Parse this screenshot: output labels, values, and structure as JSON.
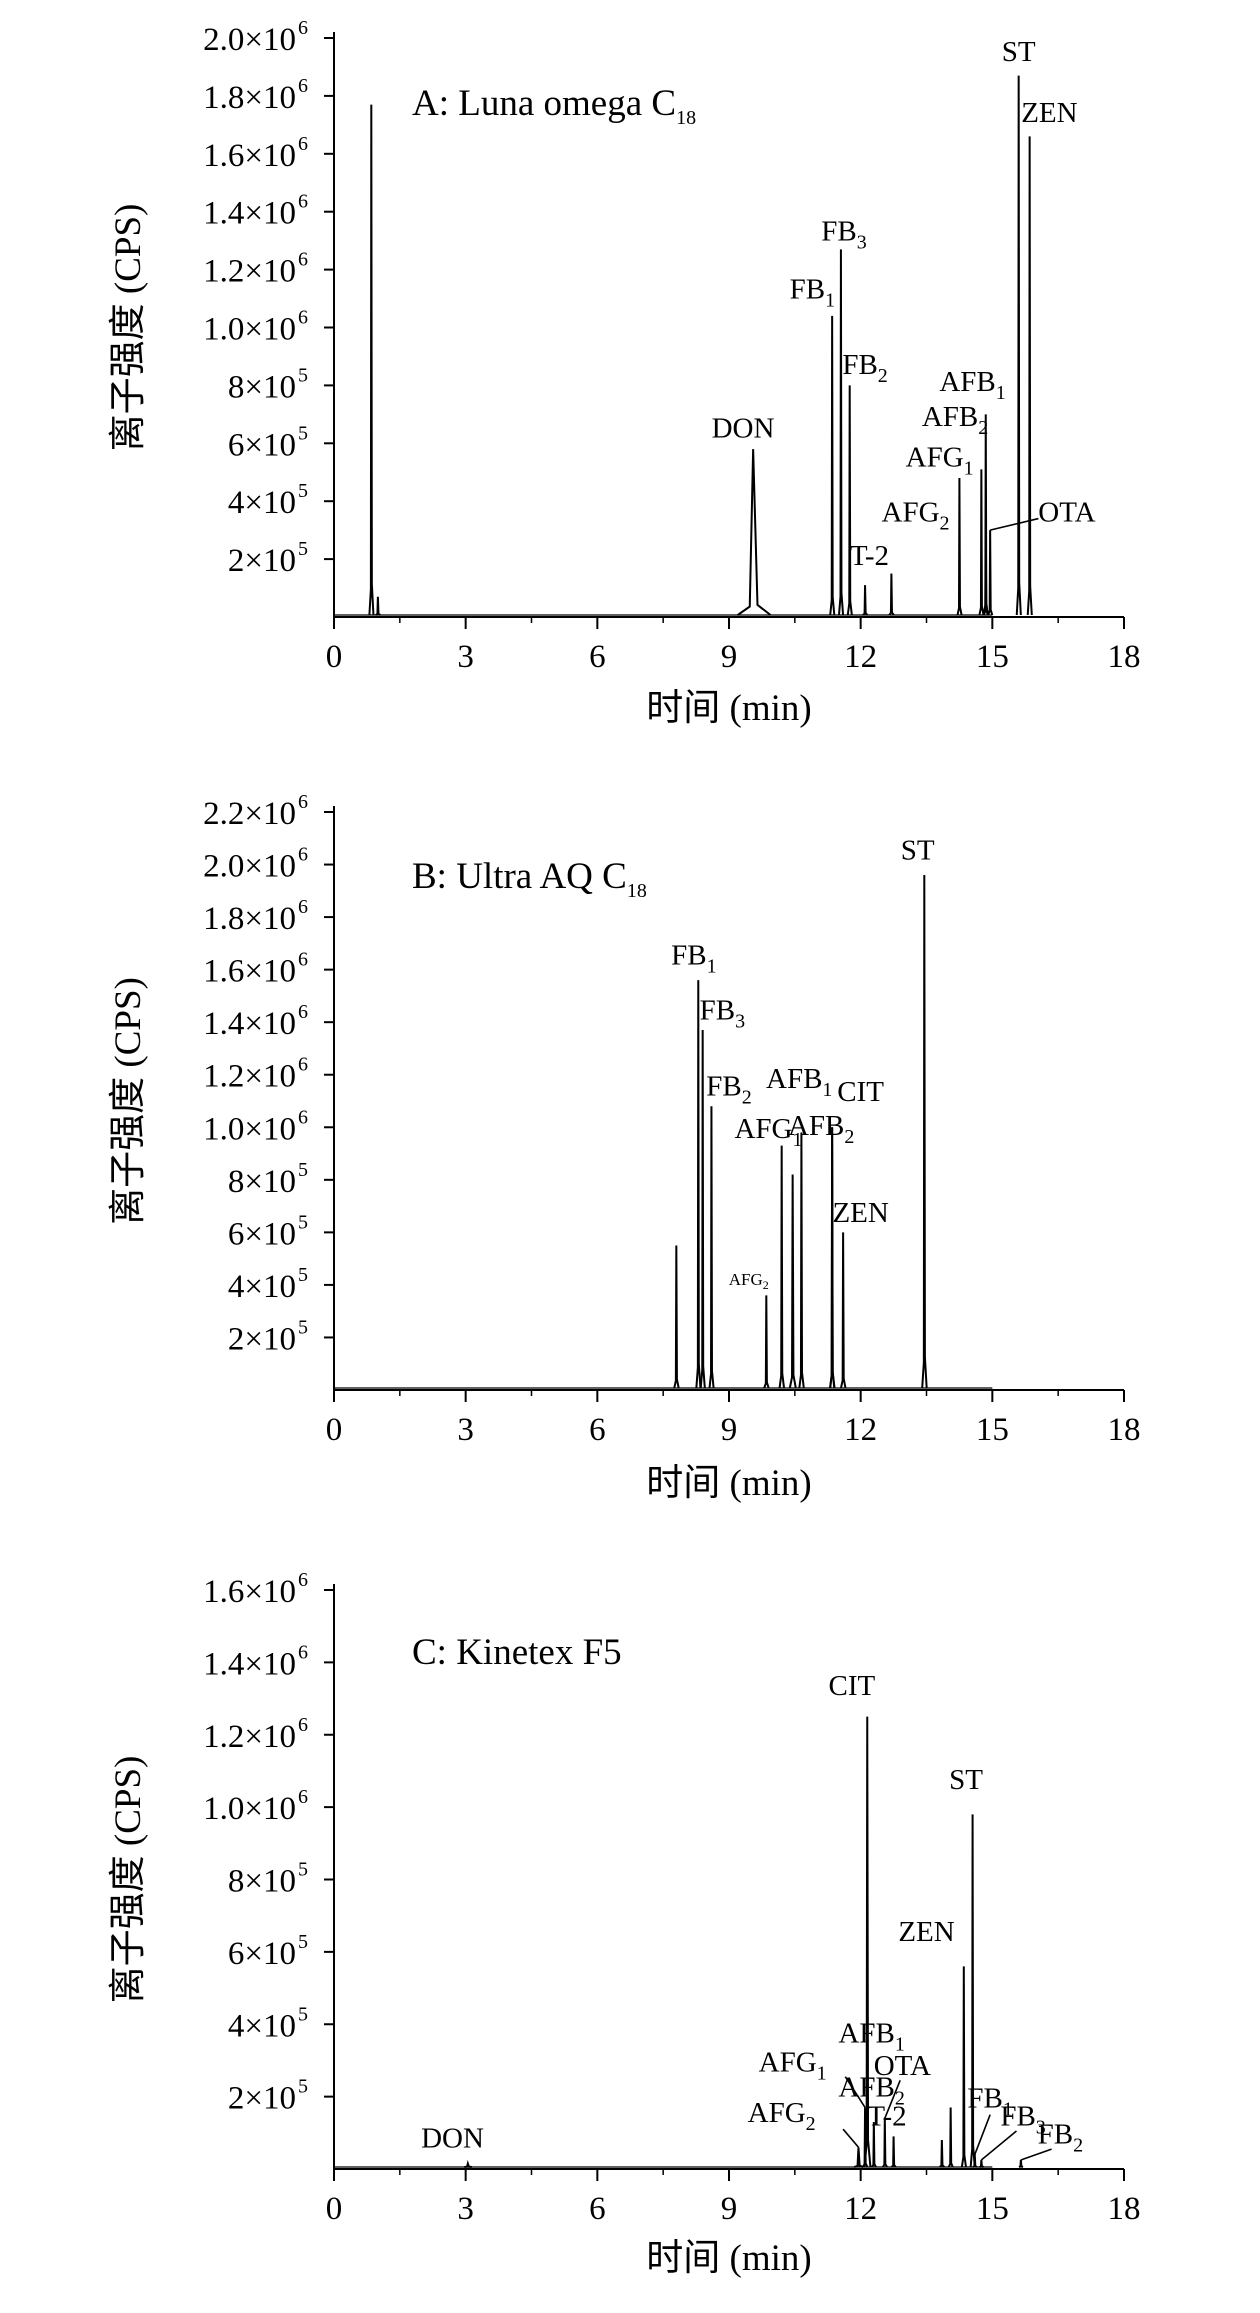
{
  "chart_data": [
    {
      "type": "line",
      "title": "A: Luna omega C",
      "title_sub": "18",
      "xlabel": "时间 (min)",
      "ylabel": "离子强度 (CPS)",
      "xlim": [
        0,
        18
      ],
      "ylim": [
        0,
        2000000
      ],
      "xticks": [
        0,
        3,
        6,
        9,
        12,
        15,
        18
      ],
      "yticks": [
        {
          "value": 200000,
          "mant": "2×10",
          "exp": "5"
        },
        {
          "value": 400000,
          "mant": "4×10",
          "exp": "5"
        },
        {
          "value": 600000,
          "mant": "6×10",
          "exp": "5"
        },
        {
          "value": 800000,
          "mant": "8×10",
          "exp": "5"
        },
        {
          "value": 1000000,
          "mant": "1.0×10",
          "exp": "6"
        },
        {
          "value": 1200000,
          "mant": "1.2×10",
          "exp": "6"
        },
        {
          "value": 1400000,
          "mant": "1.4×10",
          "exp": "6"
        },
        {
          "value": 1600000,
          "mant": "1.6×10",
          "exp": "6"
        },
        {
          "value": 1800000,
          "mant": "1.8×10",
          "exp": "6"
        },
        {
          "value": 2000000,
          "mant": "2.0×10",
          "exp": "6"
        }
      ],
      "peaks": [
        {
          "label": "",
          "x": 0.85,
          "y": 1770000,
          "w": 0.025
        },
        {
          "label": "",
          "x": 1.0,
          "y": 70000,
          "w": 0.03
        },
        {
          "label": "DON",
          "sub": "",
          "x": 9.55,
          "y": 580000,
          "w": 0.22,
          "lx": 9.32,
          "ly": 620000
        },
        {
          "label": "FB",
          "sub": "1",
          "x": 11.35,
          "y": 1040000,
          "w": 0.025,
          "lx": 10.9,
          "ly": 1100000
        },
        {
          "label": "FB",
          "sub": "3",
          "x": 11.55,
          "y": 1270000,
          "w": 0.025,
          "lx": 11.62,
          "ly": 1300000
        },
        {
          "label": "FB",
          "sub": "2",
          "x": 11.75,
          "y": 800000,
          "w": 0.025,
          "lx": 12.1,
          "ly": 840000
        },
        {
          "label": "T-2",
          "sub": "",
          "x": 12.1,
          "y": 110000,
          "w": 0.03,
          "lx": 12.2,
          "ly": 180000
        },
        {
          "label": "",
          "x": 12.7,
          "y": 150000,
          "w": 0.03
        },
        {
          "label": "AFG",
          "sub": "2",
          "x": 14.25,
          "y": 480000,
          "w": 0.025,
          "lx": 13.25,
          "ly": 330000
        },
        {
          "label": "AFG",
          "sub": "1",
          "x": 14.75,
          "y": 510000,
          "w": 0.025,
          "lx": 13.8,
          "ly": 520000
        },
        {
          "label": "AFB",
          "sub": "2",
          "x": 14.85,
          "y": 700000,
          "w": 0.025,
          "lx": 14.15,
          "ly": 660000
        },
        {
          "label": "AFB",
          "sub": "1",
          "x": 14.85,
          "y": 270000,
          "w": 0.025,
          "lx": 14.55,
          "ly": 780000
        },
        {
          "label": "ST",
          "sub": "",
          "x": 15.6,
          "y": 1870000,
          "w": 0.025,
          "lx": 15.6,
          "ly": 1920000
        },
        {
          "label": "ZEN",
          "sub": "",
          "x": 15.85,
          "y": 1660000,
          "w": 0.025,
          "lx": 16.3,
          "ly": 1710000
        },
        {
          "label": "OTA",
          "sub": "",
          "x": 14.95,
          "y": 300000,
          "w": 0.025,
          "lx": 16.7,
          "ly": 330000
        }
      ]
    },
    {
      "type": "line",
      "title": "B: Ultra AQ C",
      "title_sub": "18",
      "xlabel": "时间 (min)",
      "ylabel": "离子强度 (CPS)",
      "xlim": [
        0,
        18
      ],
      "ylim": [
        0,
        2200000
      ],
      "xticks": [
        0,
        3,
        6,
        9,
        12,
        15,
        18
      ],
      "yticks": [
        {
          "value": 200000,
          "mant": "2×10",
          "exp": "5"
        },
        {
          "value": 400000,
          "mant": "4×10",
          "exp": "5"
        },
        {
          "value": 600000,
          "mant": "6×10",
          "exp": "5"
        },
        {
          "value": 800000,
          "mant": "8×10",
          "exp": "5"
        },
        {
          "value": 1000000,
          "mant": "1.0×10",
          "exp": "6"
        },
        {
          "value": 1200000,
          "mant": "1.2×10",
          "exp": "6"
        },
        {
          "value": 1400000,
          "mant": "1.4×10",
          "exp": "6"
        },
        {
          "value": 1600000,
          "mant": "1.6×10",
          "exp": "6"
        },
        {
          "value": 1800000,
          "mant": "1.8×10",
          "exp": "6"
        },
        {
          "value": 2000000,
          "mant": "2.0×10",
          "exp": "6"
        },
        {
          "value": 2200000,
          "mant": "2.2×10",
          "exp": "6"
        }
      ],
      "peaks": [
        {
          "label": "",
          "x": 7.8,
          "y": 550000,
          "w": 0.03
        },
        {
          "label": "FB",
          "sub": "1",
          "x": 8.3,
          "y": 1560000,
          "w": 0.025,
          "lx": 8.2,
          "ly": 1620000
        },
        {
          "label": "FB",
          "sub": "3",
          "x": 8.4,
          "y": 1370000,
          "w": 0.025,
          "lx": 8.85,
          "ly": 1410000
        },
        {
          "label": "FB",
          "sub": "2",
          "x": 8.6,
          "y": 1080000,
          "w": 0.025,
          "lx": 9.0,
          "ly": 1120000
        },
        {
          "label": "AFG",
          "sub": "2",
          "x": 9.85,
          "y": 360000,
          "w": 0.03,
          "lx": 9.45,
          "ly": 400000,
          "small": true
        },
        {
          "label": "AFG",
          "sub": "1",
          "x": 10.2,
          "y": 930000,
          "w": 0.03,
          "lx": 9.9,
          "ly": 960000
        },
        {
          "label": "",
          "x": 10.45,
          "y": 820000,
          "w": 0.04
        },
        {
          "label": "AFB",
          "sub": "1",
          "x": 10.65,
          "y": 980000,
          "w": 0.03,
          "lx": 10.6,
          "ly": 1150000
        },
        {
          "label": "AFB",
          "sub": "2",
          "x": 11.35,
          "y": 1000000,
          "w": 0.03,
          "lx": 11.1,
          "ly": 970000
        },
        {
          "label": "CIT",
          "sub": "",
          "x": 11.35,
          "y": 1000000,
          "w": 0.001,
          "lx": 12.0,
          "ly": 1100000
        },
        {
          "label": "ZEN",
          "sub": "",
          "x": 11.6,
          "y": 600000,
          "w": 0.03,
          "lx": 12.0,
          "ly": 640000
        },
        {
          "label": "ST",
          "sub": "",
          "x": 13.45,
          "y": 1960000,
          "w": 0.03,
          "lx": 13.3,
          "ly": 2020000
        }
      ]
    },
    {
      "type": "line",
      "title": "C: Kinetex F5",
      "title_sub": "",
      "xlabel": "时间 (min)",
      "ylabel": "离子强度 (CPS)",
      "xlim": [
        0,
        18
      ],
      "ylim": [
        0,
        1600000
      ],
      "xticks": [
        0,
        3,
        6,
        9,
        12,
        15,
        18
      ],
      "yticks": [
        {
          "value": 200000,
          "mant": "2×10",
          "exp": "5"
        },
        {
          "value": 400000,
          "mant": "4×10",
          "exp": "5"
        },
        {
          "value": 600000,
          "mant": "6×10",
          "exp": "5"
        },
        {
          "value": 800000,
          "mant": "8×10",
          "exp": "5"
        },
        {
          "value": 1000000,
          "mant": "1.0×10",
          "exp": "6"
        },
        {
          "value": 1200000,
          "mant": "1.2×10",
          "exp": "6"
        },
        {
          "value": 1400000,
          "mant": "1.4×10",
          "exp": "6"
        },
        {
          "value": 1600000,
          "mant": "1.6×10",
          "exp": "6"
        }
      ],
      "peaks": [
        {
          "label": "DON",
          "sub": "",
          "x": 3.05,
          "y": 15000,
          "w": 0.05,
          "lx": 2.7,
          "ly": 60000
        },
        {
          "label": "AFG",
          "sub": "2",
          "x": 11.95,
          "y": 60000,
          "w": 0.06,
          "lx": 10.2,
          "ly": 130000
        },
        {
          "label": "AFG",
          "sub": "1",
          "x": 12.1,
          "y": 170000,
          "w": 0.03,
          "lx": 10.45,
          "ly": 270000
        },
        {
          "label": "CIT",
          "sub": "",
          "x": 12.15,
          "y": 1250000,
          "w": 0.04,
          "lx": 11.8,
          "ly": 1310000
        },
        {
          "label": "AFB",
          "sub": "2",
          "x": 12.3,
          "y": 130000,
          "w": 0.025,
          "lx": 12.25,
          "ly": 200000
        },
        {
          "label": "AFB",
          "sub": "1",
          "x": 12.55,
          "y": 140000,
          "w": 0.025,
          "lx": 12.25,
          "ly": 350000
        },
        {
          "label": "T-2",
          "sub": "",
          "x": 12.75,
          "y": 90000,
          "w": 0.025,
          "lx": 12.6,
          "ly": 120000
        },
        {
          "label": "OTA",
          "sub": "",
          "x": 13.85,
          "y": 80000,
          "w": 0.03,
          "lx": 12.95,
          "ly": 260000
        },
        {
          "label": "",
          "x": 14.05,
          "y": 170000,
          "w": 0.025
        },
        {
          "label": "ZEN",
          "sub": "",
          "x": 14.35,
          "y": 560000,
          "w": 0.025,
          "lx": 13.5,
          "ly": 630000
        },
        {
          "label": "ST",
          "sub": "",
          "x": 14.55,
          "y": 980000,
          "w": 0.025,
          "lx": 14.4,
          "ly": 1050000
        },
        {
          "label": "FB",
          "sub": "1",
          "x": 14.6,
          "y": 40000,
          "w": 0.025,
          "lx": 14.95,
          "ly": 170000
        },
        {
          "label": "FB",
          "sub": "3",
          "x": 14.75,
          "y": 25000,
          "w": 0.025,
          "lx": 15.7,
          "ly": 120000
        },
        {
          "label": "FB",
          "sub": "2",
          "x": 15.65,
          "y": 25000,
          "w": 0.025,
          "lx": 16.55,
          "ly": 70000
        }
      ]
    }
  ]
}
